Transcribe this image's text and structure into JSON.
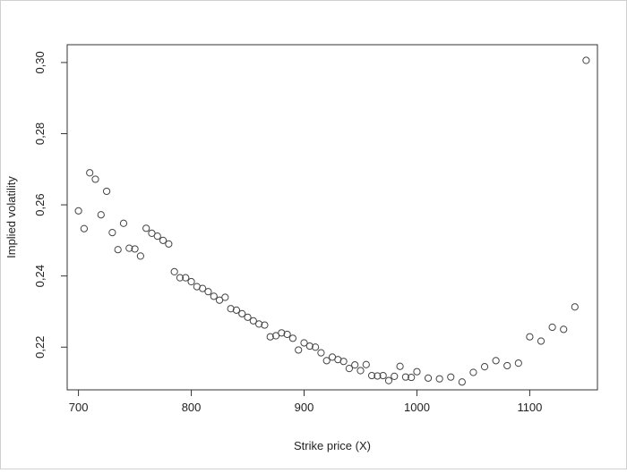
{
  "chart_data": {
    "type": "scatter",
    "title": "",
    "xlabel": "Strike price (X)",
    "ylabel": "Implied volatility",
    "xlim": [
      690,
      1160
    ],
    "ylim": [
      0.208,
      0.305
    ],
    "xticks": [
      700,
      800,
      900,
      1000,
      1100
    ],
    "xtick_labels": [
      "700",
      "800",
      "900",
      "1000",
      "1100"
    ],
    "yticks": [
      0.22,
      0.24,
      0.26,
      0.28,
      0.3
    ],
    "ytick_labels": [
      "0,22",
      "0,24",
      "0,26",
      "0,28",
      "0,30"
    ],
    "grid": false,
    "marker": "open-circle",
    "colors": {
      "marker": "#444444",
      "axis": "#333333"
    },
    "points": [
      {
        "x": 700,
        "y": 0.2583
      },
      {
        "x": 705,
        "y": 0.2533
      },
      {
        "x": 710,
        "y": 0.269
      },
      {
        "x": 715,
        "y": 0.2672
      },
      {
        "x": 720,
        "y": 0.2572
      },
      {
        "x": 725,
        "y": 0.2638
      },
      {
        "x": 730,
        "y": 0.2522
      },
      {
        "x": 735,
        "y": 0.2474
      },
      {
        "x": 740,
        "y": 0.2548
      },
      {
        "x": 745,
        "y": 0.2478
      },
      {
        "x": 750,
        "y": 0.2476
      },
      {
        "x": 755,
        "y": 0.2456
      },
      {
        "x": 760,
        "y": 0.2534
      },
      {
        "x": 765,
        "y": 0.252
      },
      {
        "x": 770,
        "y": 0.2512
      },
      {
        "x": 775,
        "y": 0.25
      },
      {
        "x": 780,
        "y": 0.249
      },
      {
        "x": 785,
        "y": 0.2412
      },
      {
        "x": 790,
        "y": 0.2395
      },
      {
        "x": 795,
        "y": 0.2395
      },
      {
        "x": 800,
        "y": 0.2384
      },
      {
        "x": 805,
        "y": 0.237
      },
      {
        "x": 810,
        "y": 0.2365
      },
      {
        "x": 815,
        "y": 0.2356
      },
      {
        "x": 820,
        "y": 0.2343
      },
      {
        "x": 825,
        "y": 0.2332
      },
      {
        "x": 830,
        "y": 0.234
      },
      {
        "x": 835,
        "y": 0.2308
      },
      {
        "x": 840,
        "y": 0.2304
      },
      {
        "x": 845,
        "y": 0.2294
      },
      {
        "x": 850,
        "y": 0.2284
      },
      {
        "x": 855,
        "y": 0.2274
      },
      {
        "x": 860,
        "y": 0.2265
      },
      {
        "x": 865,
        "y": 0.2262
      },
      {
        "x": 870,
        "y": 0.2229
      },
      {
        "x": 875,
        "y": 0.2232
      },
      {
        "x": 880,
        "y": 0.224
      },
      {
        "x": 885,
        "y": 0.2236
      },
      {
        "x": 890,
        "y": 0.2225
      },
      {
        "x": 895,
        "y": 0.2192
      },
      {
        "x": 900,
        "y": 0.2212
      },
      {
        "x": 905,
        "y": 0.2203
      },
      {
        "x": 910,
        "y": 0.22
      },
      {
        "x": 915,
        "y": 0.2184
      },
      {
        "x": 920,
        "y": 0.2162
      },
      {
        "x": 925,
        "y": 0.2172
      },
      {
        "x": 930,
        "y": 0.2165
      },
      {
        "x": 935,
        "y": 0.216
      },
      {
        "x": 940,
        "y": 0.214
      },
      {
        "x": 945,
        "y": 0.215
      },
      {
        "x": 950,
        "y": 0.2134
      },
      {
        "x": 955,
        "y": 0.2151
      },
      {
        "x": 960,
        "y": 0.212
      },
      {
        "x": 965,
        "y": 0.2119
      },
      {
        "x": 970,
        "y": 0.212
      },
      {
        "x": 975,
        "y": 0.2106
      },
      {
        "x": 980,
        "y": 0.2118
      },
      {
        "x": 985,
        "y": 0.2146
      },
      {
        "x": 990,
        "y": 0.2116
      },
      {
        "x": 995,
        "y": 0.2115
      },
      {
        "x": 1000,
        "y": 0.2131
      },
      {
        "x": 1010,
        "y": 0.2113
      },
      {
        "x": 1020,
        "y": 0.2111
      },
      {
        "x": 1030,
        "y": 0.2116
      },
      {
        "x": 1040,
        "y": 0.2102
      },
      {
        "x": 1050,
        "y": 0.2129
      },
      {
        "x": 1060,
        "y": 0.2145
      },
      {
        "x": 1070,
        "y": 0.2162
      },
      {
        "x": 1080,
        "y": 0.2148
      },
      {
        "x": 1090,
        "y": 0.2155
      },
      {
        "x": 1100,
        "y": 0.2229
      },
      {
        "x": 1110,
        "y": 0.2217
      },
      {
        "x": 1120,
        "y": 0.2256
      },
      {
        "x": 1130,
        "y": 0.225
      },
      {
        "x": 1140,
        "y": 0.2313
      },
      {
        "x": 1150,
        "y": 0.3006
      }
    ]
  }
}
